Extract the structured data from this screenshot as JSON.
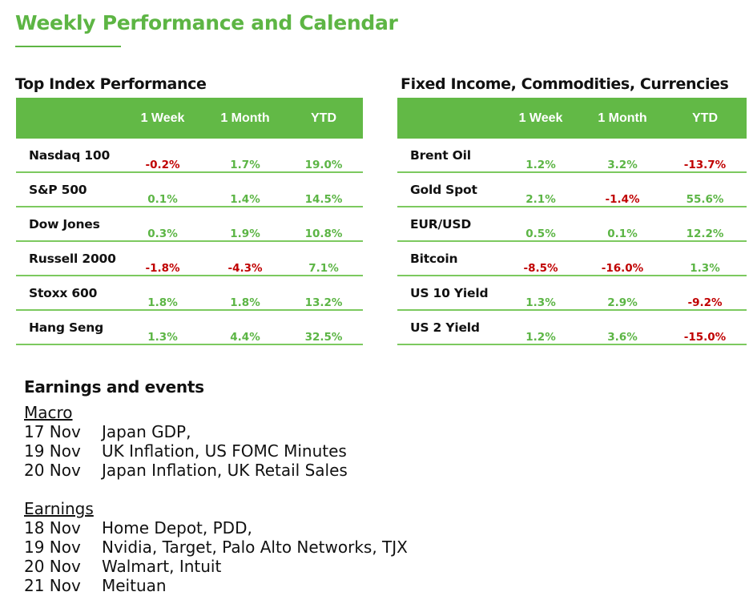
{
  "title": "Weekly Performance and Calendar",
  "colors": {
    "accent": "#5db544",
    "header": "#62b946",
    "positive": "#5cb545",
    "negative": "#c00000"
  },
  "index_table": {
    "heading": "Top Index Performance",
    "columns": [
      "1 Week",
      "1 Month",
      "YTD"
    ],
    "rows": [
      {
        "name": "Nasdaq 100",
        "values": [
          "-0.2%",
          "1.7%",
          "19.0%"
        ]
      },
      {
        "name": "S&P 500",
        "values": [
          "0.1%",
          "1.4%",
          "14.5%"
        ]
      },
      {
        "name": "Dow Jones",
        "values": [
          "0.3%",
          "1.9%",
          "10.8%"
        ]
      },
      {
        "name": "Russell 2000",
        "values": [
          "-1.8%",
          "-4.3%",
          "7.1%"
        ]
      },
      {
        "name": "Stoxx 600",
        "values": [
          "1.8%",
          "1.8%",
          "13.2%"
        ]
      },
      {
        "name": "Hang Seng",
        "values": [
          "1.3%",
          "4.4%",
          "32.5%"
        ]
      }
    ]
  },
  "fixed_table": {
    "heading": "Fixed Income, Commodities, Currencies",
    "columns": [
      "1 Week",
      "1 Month",
      "YTD"
    ],
    "rows": [
      {
        "name": "Brent Oil",
        "values": [
          "1.2%",
          "3.2%",
          "-13.7%"
        ]
      },
      {
        "name": "Gold Spot",
        "values": [
          "2.1%",
          "-1.4%",
          "55.6%"
        ]
      },
      {
        "name": "EUR/USD",
        "values": [
          "0.5%",
          "0.1%",
          "12.2%"
        ]
      },
      {
        "name": "Bitcoin",
        "values": [
          "-8.5%",
          "-16.0%",
          "1.3%"
        ]
      },
      {
        "name": "US 10 Yield",
        "values": [
          "1.3%",
          "2.9%",
          "-9.2%"
        ]
      },
      {
        "name": "US 2 Yield",
        "values": [
          "1.2%",
          "3.6%",
          "-15.0%"
        ]
      }
    ]
  },
  "events": {
    "heading": "Earnings and events",
    "macro": {
      "label": "Macro",
      "items": [
        {
          "date": "17  Nov",
          "text": "Japan GDP,"
        },
        {
          "date": "19  Nov",
          "text": "UK Inflation, US FOMC Minutes"
        },
        {
          "date": "20 Nov",
          "text": "Japan Inflation, UK Retail Sales"
        }
      ]
    },
    "earnings": {
      "label": "Earnings",
      "items": [
        {
          "date": "18 Nov",
          "text": "Home Depot, PDD,"
        },
        {
          "date": "19 Nov",
          "text": "Nvidia, Target, Palo Alto Networks, TJX"
        },
        {
          "date": "20 Nov",
          "text": "Walmart, Intuit"
        },
        {
          "date": "21 Nov",
          "text": "Meituan"
        }
      ]
    }
  }
}
